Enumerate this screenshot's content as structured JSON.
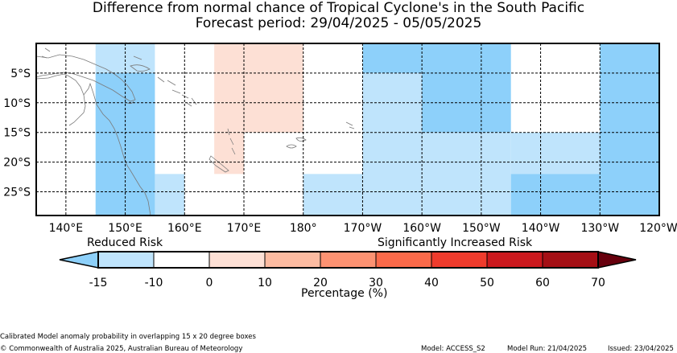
{
  "title": {
    "line1": "Difference from normal chance of Tropical Cyclone's in the South Pacific",
    "line2": "Forecast period: 29/04/2025 - 05/05/2025"
  },
  "map": {
    "lon_labels": [
      "140°E",
      "150°E",
      "160°E",
      "170°E",
      "180°",
      "170°W",
      "160°W",
      "150°W",
      "140°W",
      "130°W",
      "120°W"
    ],
    "lat_labels": [
      "5°S",
      "10°S",
      "15°S",
      "20°S",
      "25°S"
    ],
    "cells": [
      {
        "lon": [
          145,
          155
        ],
        "lat": [
          0,
          5
        ],
        "bin": "-15_-10"
      },
      {
        "lon": [
          145,
          155
        ],
        "lat": [
          5,
          30
        ],
        "bin": "lt_-15"
      },
      {
        "lon": [
          155,
          160
        ],
        "lat": [
          22,
          30
        ],
        "bin": "-15_-10"
      },
      {
        "lon": [
          165,
          180
        ],
        "lat": [
          0,
          15
        ],
        "bin": "0_10"
      },
      {
        "lon": [
          165,
          170
        ],
        "lat": [
          15,
          22
        ],
        "bin": "0_10"
      },
      {
        "lon": [
          180,
          190
        ],
        "lat": [
          22,
          30
        ],
        "bin": "-15_-10"
      },
      {
        "lon": [
          190,
          200
        ],
        "lat": [
          0,
          5
        ],
        "bin": "lt_-15"
      },
      {
        "lon": [
          190,
          200
        ],
        "lat": [
          5,
          30
        ],
        "bin": "-15_-10"
      },
      {
        "lon": [
          200,
          215
        ],
        "lat": [
          0,
          15
        ],
        "bin": "lt_-15"
      },
      {
        "lon": [
          200,
          215
        ],
        "lat": [
          15,
          30
        ],
        "bin": "-15_-10"
      },
      {
        "lon": [
          215,
          230
        ],
        "lat": [
          15,
          22
        ],
        "bin": "-15_-10"
      },
      {
        "lon": [
          215,
          230
        ],
        "lat": [
          22,
          30
        ],
        "bin": "lt_-15"
      },
      {
        "lon": [
          230,
          245
        ],
        "lat": [
          0,
          30
        ],
        "bin": "lt_-15"
      }
    ]
  },
  "legend": {
    "reduced_label": "Reduced Risk",
    "increased_label": "Significantly Increased Risk",
    "ticks": [
      "-15",
      "-10",
      "0",
      "10",
      "20",
      "30",
      "40",
      "50",
      "60",
      "70"
    ],
    "colors": {
      "lt_-15": "#8dd0fa",
      "-15_-10": "#bfe4fc",
      "-10_0": "#ffffff",
      "0_10": "#fde0d5",
      "10_20": "#fcbba1",
      "20_30": "#fc9272",
      "30_40": "#fb6a4a",
      "40_50": "#ef3b2c",
      "50_60": "#cb181d",
      "60_70": "#a50f15",
      "gt_70": "#67000d"
    },
    "xlabel": "Percentage (%)"
  },
  "footer": {
    "desc": "Calibrated Model anomaly probability in overlapping 15 x 20 degree boxes",
    "copyright": "© Commonwealth of Australia 2025, Australian Bureau of Meteorology",
    "model": "Model: ACCESS_S2",
    "run": "Model Run: 21/04/2025",
    "issued": "Issued: 23/04/2025"
  }
}
